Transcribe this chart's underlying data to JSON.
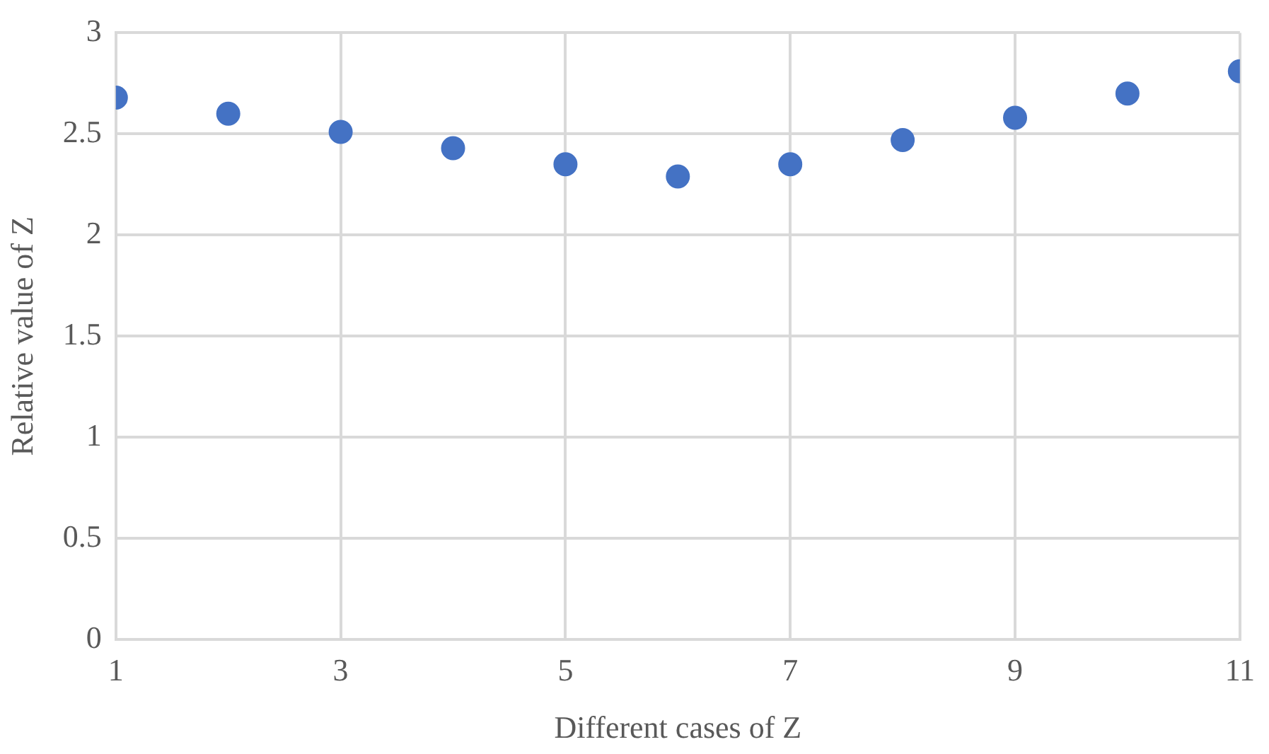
{
  "chart_data": {
    "type": "scatter",
    "xlabel": "Different cases of Z",
    "ylabel": "Relative value of Z",
    "x": [
      1,
      2,
      3,
      4,
      5,
      6,
      7,
      8,
      9,
      10,
      11
    ],
    "series": [
      {
        "color": "#4472c4",
        "values": [
          2.68,
          2.6,
          2.51,
          2.43,
          2.35,
          2.29,
          2.35,
          2.47,
          2.58,
          2.7,
          2.81
        ]
      }
    ],
    "xlim": [
      1,
      11
    ],
    "xticks": [
      1,
      3,
      5,
      7,
      9,
      11
    ],
    "ylim": [
      0,
      3
    ],
    "yticks": [
      0,
      0.5,
      1,
      1.5,
      2,
      2.5,
      3
    ],
    "grid": true,
    "legend": false,
    "marker": "circle"
  }
}
